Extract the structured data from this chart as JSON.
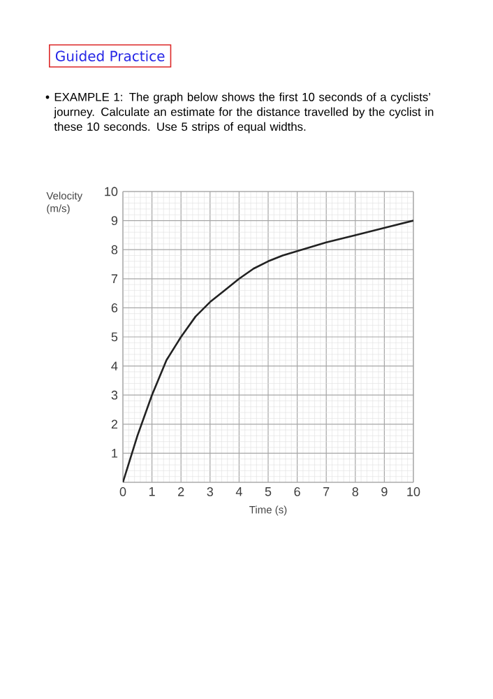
{
  "chart_data": {
    "type": "line",
    "title": "Guided Practice",
    "subtitle": "EXAMPLE 1: The graph below shows the first 10 seconds of a cyclists’ journey. Calculate an estimate for the distance travelled by the cyclist in these 10 seconds. Use 5 strips of equal widths.",
    "xlabel": "Time (s)",
    "ylabel": "Velocity (m/s)",
    "x": [
      0,
      0.5,
      1,
      1.5,
      2,
      2.5,
      3,
      3.5,
      4,
      4.5,
      5,
      5.5,
      6,
      7,
      8,
      9,
      10
    ],
    "series": [
      {
        "color": "#222222",
        "values": [
          0,
          1.6,
          3,
          4.2,
          5,
          5.7,
          6.2,
          6.6,
          7,
          7.35,
          7.6,
          7.8,
          7.95,
          8.25,
          8.5,
          8.75,
          9
        ]
      }
    ],
    "xlim": [
      0,
      10
    ],
    "ylim": [
      0,
      10
    ],
    "xticks": [
      0,
      1,
      2,
      3,
      4,
      5,
      6,
      7,
      8,
      9,
      10
    ],
    "yticks": [
      {
        "value": 0,
        "label": null
      },
      1,
      2,
      3,
      4,
      5,
      6,
      7,
      8,
      9,
      10
    ],
    "grid": true,
    "marker": "none",
    "line_style": "solid"
  }
}
